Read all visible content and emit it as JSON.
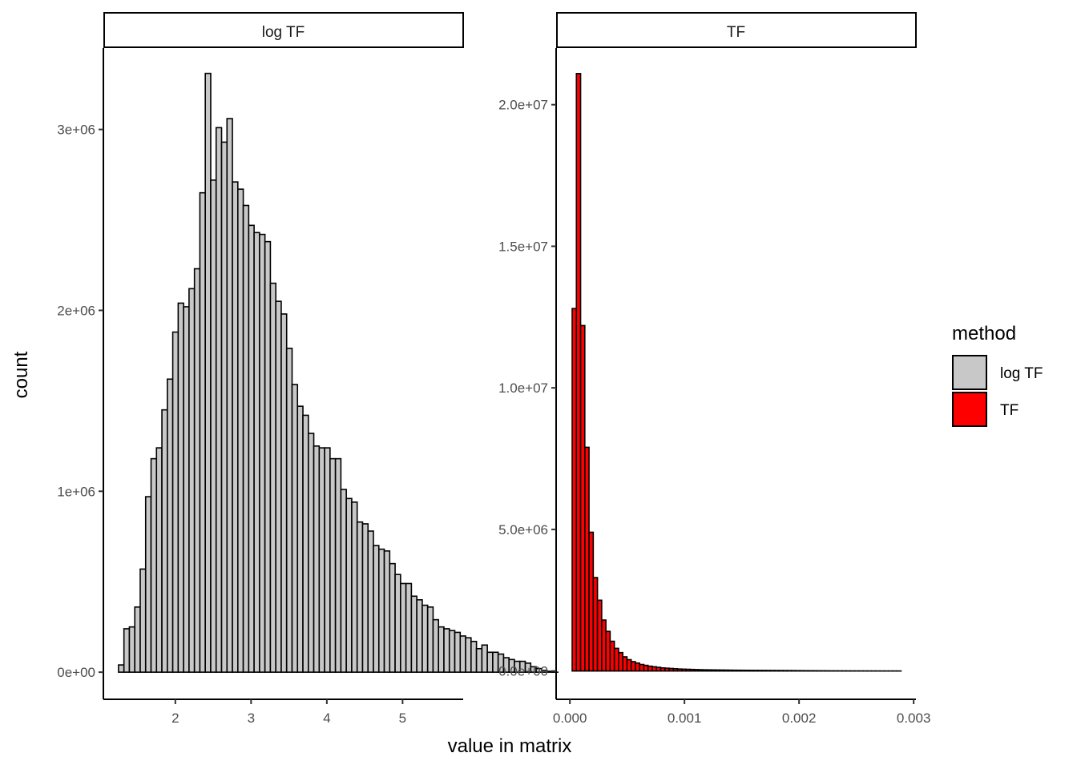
{
  "chart_data": {
    "type": "bar",
    "xlabel": "value in matrix",
    "ylabel": "count",
    "legend": {
      "title": "method",
      "position": "right",
      "entries": [
        {
          "name": "log TF",
          "color": "#c8c8c8"
        },
        {
          "name": "TF",
          "color": "#ff0000"
        }
      ]
    },
    "panels": [
      {
        "strip": "log TF",
        "fill": "#c8c8c8",
        "xlim": [
          1.05,
          5.8
        ],
        "ylim": [
          -150000,
          3450000
        ],
        "x_ticks": [
          2,
          3,
          4,
          5
        ],
        "x_tick_labels": [
          "2",
          "3",
          "4",
          "5"
        ],
        "y_ticks": [
          0,
          1000000,
          2000000,
          3000000
        ],
        "y_tick_labels": [
          "0e+00",
          "1e+06",
          "2e+06",
          "3e+06"
        ],
        "bin_start": 1.25,
        "bin_width": 0.0716,
        "values": [
          40000,
          240000,
          250000,
          360000,
          570000,
          970000,
          1180000,
          1240000,
          1450000,
          1620000,
          1880000,
          2040000,
          2020000,
          2120000,
          2230000,
          2650000,
          3310000,
          2720000,
          3010000,
          2930000,
          3060000,
          2710000,
          2670000,
          2580000,
          2470000,
          2430000,
          2420000,
          2380000,
          2150000,
          2050000,
          1980000,
          1790000,
          1590000,
          1470000,
          1420000,
          1320000,
          1250000,
          1240000,
          1240000,
          1180000,
          1180000,
          1010000,
          960000,
          940000,
          830000,
          820000,
          780000,
          700000,
          680000,
          670000,
          600000,
          540000,
          490000,
          490000,
          420000,
          400000,
          370000,
          360000,
          290000,
          250000,
          240000,
          230000,
          220000,
          200000,
          190000,
          170000,
          130000,
          150000,
          110000,
          110000,
          100000,
          80000,
          70000,
          60000,
          60000,
          50000,
          30000,
          20000,
          10000,
          5000,
          0
        ]
      },
      {
        "strip": "TF",
        "fill": "#ff0000",
        "xlim": [
          -0.00012,
          0.00302
        ],
        "ylim": [
          -1000000,
          22000000
        ],
        "x_ticks": [
          0,
          0.001,
          0.002,
          0.003
        ],
        "x_tick_labels": [
          "0.000",
          "0.001",
          "0.002",
          "0.003"
        ],
        "y_ticks": [
          0,
          5000000,
          10000000,
          15000000,
          20000000
        ],
        "y_tick_labels": [
          "0.0e+00",
          "5.0e+06",
          "1.0e+07",
          "1.5e+07",
          "2.0e+07"
        ],
        "bin_start": 2e-05,
        "bin_width": 3.68e-05,
        "values": [
          12800000,
          21100000,
          12200000,
          7900000,
          4900000,
          3300000,
          2500000,
          1800000,
          1400000,
          1050000,
          800000,
          650000,
          500000,
          400000,
          330000,
          280000,
          230000,
          200000,
          170000,
          150000,
          130000,
          110000,
          100000,
          90000,
          80000,
          70000,
          65000,
          60000,
          55000,
          50000,
          45000,
          42000,
          40000,
          38000,
          36000,
          34000,
          32000,
          30000,
          28000,
          27000,
          26000,
          25000,
          24000,
          23000,
          22000,
          21000,
          20000,
          19000,
          18000,
          17000,
          16000,
          15000,
          14000,
          13000,
          12000,
          11000,
          10000,
          9000,
          8000,
          7000,
          6000,
          5000,
          4500,
          4000,
          3500,
          3000,
          2600,
          2200,
          1800,
          1500,
          1200,
          1000,
          800,
          600,
          400,
          300,
          200,
          100
        ]
      }
    ]
  }
}
